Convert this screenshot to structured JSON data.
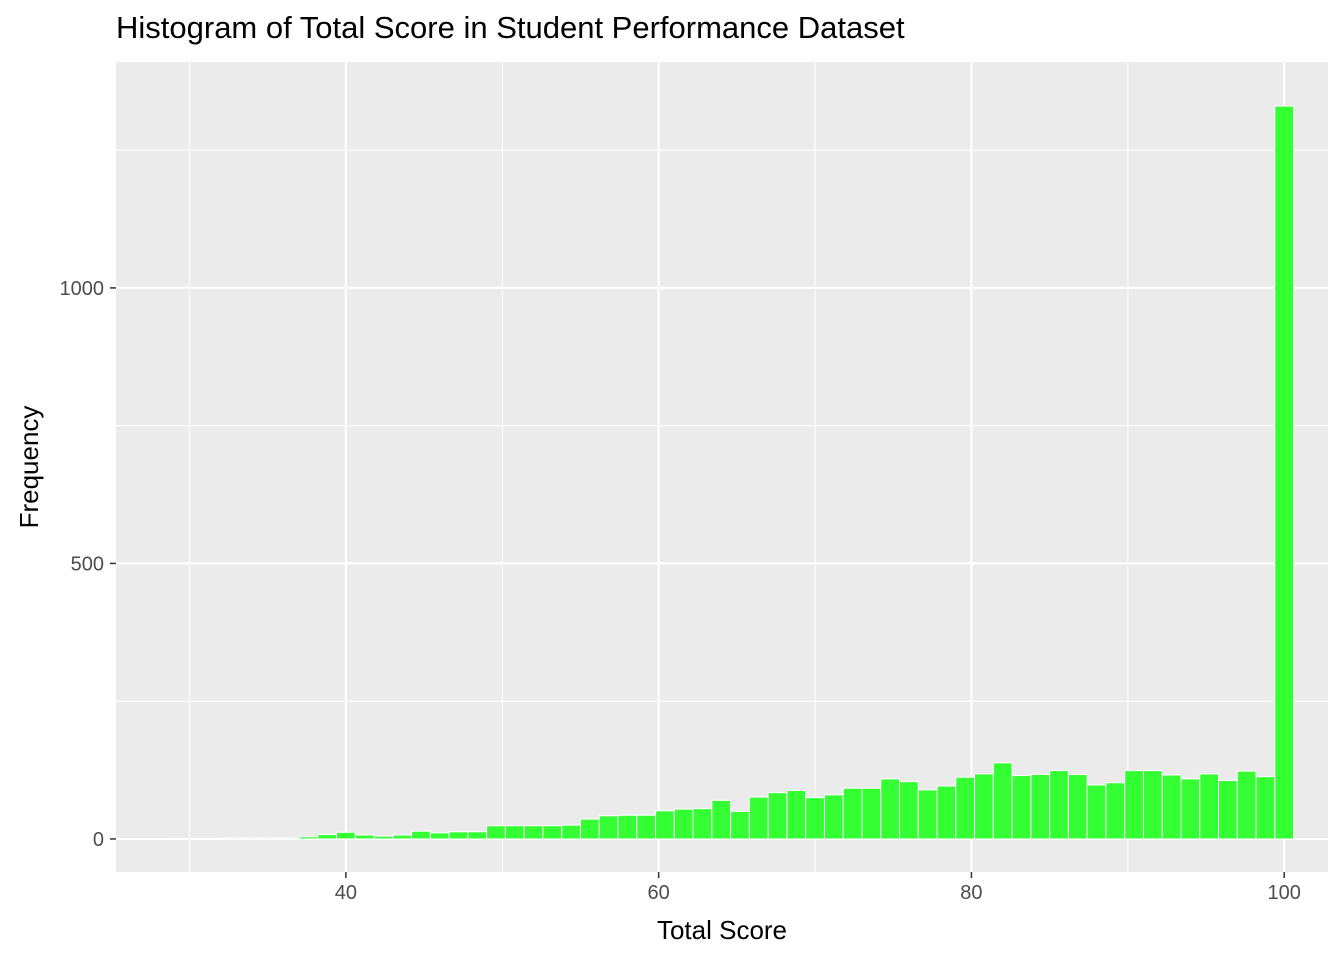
{
  "chart_data": {
    "type": "bar",
    "title": "Histogram of Total Score in Student Performance Dataset",
    "xlabel": "Total Score",
    "ylabel": "Frequency",
    "xlim": [
      25.3,
      102.8
    ],
    "ylim": [
      -60,
      1410
    ],
    "x_ticks": [
      40,
      60,
      80,
      100
    ],
    "x_tick_labels": [
      "40",
      "60",
      "80",
      "100"
    ],
    "y_ticks": [
      0,
      500,
      1000
    ],
    "y_tick_labels": [
      "0",
      "500",
      "1000"
    ],
    "x_minor_ticks": [
      30,
      50,
      70,
      90
    ],
    "y_minor_ticks": [
      250,
      750,
      1250
    ],
    "bin_width": 1.2,
    "bin_centers": [
      29.2,
      30.4,
      31.6,
      32.8,
      34.0,
      35.2,
      36.4,
      37.6,
      38.8,
      40.0,
      41.2,
      42.4,
      43.6,
      44.8,
      46.0,
      47.2,
      48.4,
      49.6,
      50.8,
      52.0,
      53.2,
      54.4,
      55.6,
      56.8,
      58.0,
      59.2,
      60.4,
      61.6,
      62.8,
      64.0,
      65.2,
      66.4,
      67.6,
      68.8,
      70.0,
      71.2,
      72.4,
      73.6,
      74.8,
      76.0,
      77.2,
      78.4,
      79.6,
      80.8,
      82.0,
      83.2,
      84.4,
      85.6,
      86.8,
      88.0,
      89.2,
      90.4,
      91.6,
      92.8,
      94.0,
      95.2,
      96.4,
      97.6,
      98.8,
      100.0
    ],
    "values": [
      1,
      1,
      1,
      2,
      2,
      2,
      2,
      4,
      8,
      12,
      7,
      5,
      7,
      14,
      11,
      13,
      13,
      24,
      24,
      24,
      24,
      25,
      36,
      42,
      43,
      43,
      51,
      54,
      55,
      70,
      50,
      76,
      84,
      88,
      75,
      80,
      92,
      92,
      109,
      104,
      89,
      96,
      112,
      118,
      138,
      115,
      117,
      124,
      117,
      98,
      102,
      124,
      124,
      116,
      109,
      118,
      106,
      123,
      113,
      1330
    ],
    "bar_fill": "#33ff33",
    "bar_outline": "#ffffff",
    "panel_background": "#ebebeb",
    "grid": true,
    "grid_color": "#ffffff",
    "legend": "none"
  }
}
